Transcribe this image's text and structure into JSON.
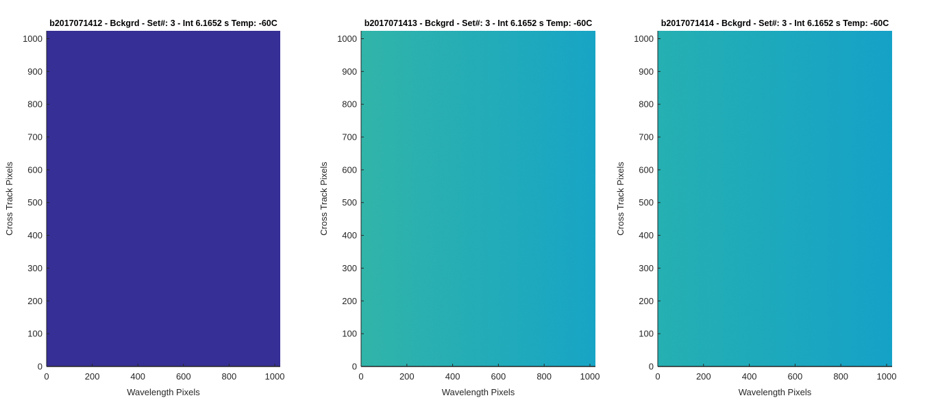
{
  "chart_data": [
    {
      "type": "heatmap",
      "title": "b2017071412 - Bckgrd - Set#: 3 - Int 6.1652 s Temp: -60C",
      "xlabel": "Wavelength Pixels",
      "ylabel": "Cross Track Pixels",
      "xlim": [
        0,
        1024
      ],
      "ylim": [
        0,
        1024
      ],
      "xticks": [
        0,
        200,
        400,
        600,
        800,
        1000
      ],
      "yticks": [
        0,
        100,
        200,
        300,
        400,
        500,
        600,
        700,
        800,
        900,
        1000
      ],
      "grid": false,
      "colors": {
        "left": "#362f95",
        "right": "#362f95",
        "noise": 0
      }
    },
    {
      "type": "heatmap",
      "title": "b2017071413 - Bckgrd - Set#: 3 - Int 6.1652 s Temp: -60C",
      "xlabel": "Wavelength Pixels",
      "ylabel": "Cross Track Pixels",
      "xlim": [
        0,
        1024
      ],
      "ylim": [
        0,
        1024
      ],
      "xticks": [
        0,
        200,
        400,
        600,
        800,
        1000
      ],
      "yticks": [
        0,
        100,
        200,
        300,
        400,
        500,
        600,
        700,
        800,
        900,
        1000
      ],
      "grid": false,
      "colors": {
        "left": "#2fb2a6",
        "right": "#16a2c4",
        "noise": 0.35
      }
    },
    {
      "type": "heatmap",
      "title": "b2017071414 - Bckgrd - Set#: 3 - Int 6.1652 s Temp: -60C",
      "xlabel": "Wavelength Pixels",
      "ylabel": "Cross Track Pixels",
      "xlim": [
        0,
        1024
      ],
      "ylim": [
        0,
        1024
      ],
      "xticks": [
        0,
        200,
        400,
        600,
        800,
        1000
      ],
      "yticks": [
        0,
        100,
        200,
        300,
        400,
        500,
        600,
        700,
        800,
        900,
        1000
      ],
      "grid": false,
      "colors": {
        "left": "#24aeb0",
        "right": "#149fc6",
        "noise": 0.3
      }
    }
  ]
}
